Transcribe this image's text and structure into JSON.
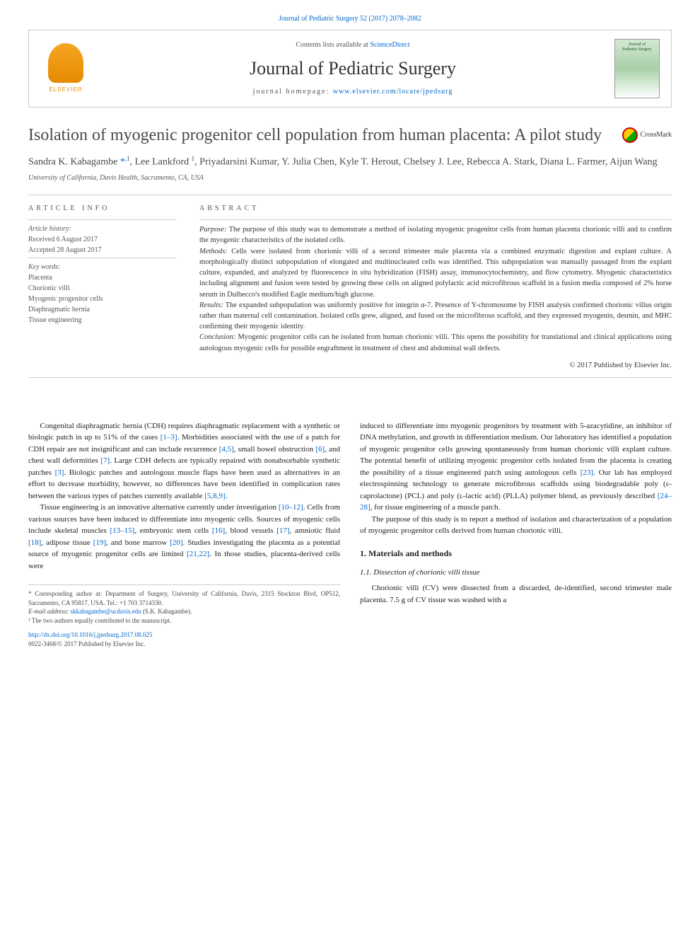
{
  "top_citation": "Journal of Pediatric Surgery 52 (2017) 2078–2082",
  "header": {
    "contents_prefix": "Contents lists available at ",
    "contents_link": "ScienceDirect",
    "journal_name": "Journal of Pediatric Surgery",
    "homepage_label": "journal homepage: ",
    "homepage_url": "www.elsevier.com/locate/jpedsurg",
    "publisher_name": "ELSEVIER",
    "cover_line1": "Journal of",
    "cover_line2": "Pediatric Surgery"
  },
  "article": {
    "title": "Isolation of myogenic progenitor cell population from human placenta: A pilot study",
    "crossmark": "CrossMark",
    "authors_html": "Sandra K. Kabagambe <a>*</a><sup>,1</sup>, Lee Lankford <sup>1</sup>, Priyadarsini Kumar, Y. Julia Chen, Kyle T. Herout, Chelsey J. Lee, Rebecca A. Stark, Diana L. Farmer, Aijun Wang",
    "affiliation": "University of California, Davis Health, Sacramento, CA, USA"
  },
  "info": {
    "heading": "article info",
    "history_label": "Article history:",
    "received": "Received 6 August 2017",
    "accepted": "Accepted 28 August 2017",
    "keywords_label": "Key words:",
    "keywords": [
      "Placenta",
      "Chorionic villi",
      "Myogenic progenitor cells",
      "Diaphragmatic hernia",
      "Tissue engineering"
    ]
  },
  "abstract": {
    "heading": "abstract",
    "purpose_label": "Purpose:",
    "purpose": " The purpose of this study was to demonstrate a method of isolating myogenic progenitor cells from human placenta chorionic villi and to confirm the myogenic characteristics of the isolated cells.",
    "methods_label": "Methods:",
    "methods": " Cells were isolated from chorionic villi of a second trimester male placenta via a combined enzymatic digestion and explant culture. A morphologically distinct subpopulation of elongated and multinucleated cells was identified. This subpopulation was manually passaged from the explant culture, expanded, and analyzed by fluorescence in situ hybridization (FISH) assay, immunocytochemistry, and flow cytometry. Myogenic characteristics including alignment and fusion were tested by growing these cells on aligned polylactic acid microfibrous scaffold in a fusion media composed of 2% horse serum in Dulbecco's modified Eagle medium/high glucose.",
    "results_label": "Results:",
    "results": " The expanded subpopulation was uniformly positive for integrin α-7. Presence of Y-chromosome by FISH analysis confirmed chorionic villus origin rather than maternal cell contamination. Isolated cells grew, aligned, and fused on the microfibrous scaffold, and they expressed myogenin, desmin, and MHC confirming their myogenic identity.",
    "conclusion_label": "Conclusion:",
    "conclusion": " Myogenic progenitor cells can be isolated from human chorionic villi. This opens the possibility for translational and clinical applications using autologous myogenic cells for possible engraftment in treatment of chest and abdominal wall defects.",
    "copyright": "© 2017 Published by Elsevier Inc."
  },
  "body": {
    "p1_a": "Congenital diaphragmatic hernia (CDH) requires diaphragmatic replacement with a synthetic or biologic patch in up to 51% of the cases ",
    "p1_r1": "[1–3]",
    "p1_b": ". Morbidities associated with the use of a patch for CDH repair are not insignificant and can include recurrence ",
    "p1_r2": "[4,5]",
    "p1_c": ", small bowel obstruction ",
    "p1_r3": "[6]",
    "p1_d": ", and chest wall deformities ",
    "p1_r4": "[7]",
    "p1_e": ". Large CDH defects are typically repaired with nonabsorbable synthetic patches ",
    "p1_r5": "[3]",
    "p1_f": ". Biologic patches and autologous muscle flaps have been used as alternatives in an effort to decrease morbidity, however, no differences have been identified in complication rates between the various types of patches currently available ",
    "p1_r6": "[5,8,9]",
    "p1_g": ".",
    "p2_a": "Tissue engineering is an innovative alternative currently under investigation ",
    "p2_r1": "[10–12]",
    "p2_b": ". Cells from various sources have been induced to differentiate into myogenic cells. Sources of myogenic cells include skeletal muscles ",
    "p2_r2": "[13–15]",
    "p2_c": ", embryonic stem cells ",
    "p2_r3": "[16]",
    "p2_d": ", blood vessels ",
    "p2_r4": "[17]",
    "p2_e": ", amniotic fluid ",
    "p2_r5": "[18]",
    "p2_f": ", adipose tissue ",
    "p2_r6": "[19]",
    "p2_g": ", and bone marrow ",
    "p2_r7": "[20]",
    "p2_h": ". Studies investigating the placenta as a potential source of myogenic progenitor cells are limited ",
    "p2_r8": "[21,22]",
    "p2_i": ". In those studies, placenta-derived cells were ",
    "p3_a": "induced to differentiate into myogenic progenitors by treatment with 5-azacytidine, an inhibitor of DNA methylation, and growth in differentiation medium. Our laboratory has identified a population of myogenic progenitor cells growing spontaneously from human chorionic villi explant culture. The potential benefit of utilizing myogenic progenitor cells isolated from the placenta is creating the possibility of a tissue engineered patch using autologous cells ",
    "p3_r1": "[23]",
    "p3_b": ". Our lab has employed electrospinning technology to generate microfibrous scaffolds using biodegradable poly (ε-caprolactone) (PCL) and poly (ʟ-lactic acid) (PLLA) polymer blend, as previously described ",
    "p3_r2": "[24–28]",
    "p3_c": ", for tissue engineering of a muscle patch.",
    "p4": "The purpose of this study is to report a method of isolation and characterization of a population of myogenic progenitor cells derived from human chorionic villi.",
    "sec1": "1. Materials and methods",
    "sec11": "1.1. Dissection of chorionic villi tissue",
    "p5": "Chorionic villi (CV) were dissected from a discarded, de-identified, second trimester male placenta. 7.5 g of CV tissue was washed with a"
  },
  "footnotes": {
    "corr": "* Corresponding author at: Department of Surgery, University of California, Davis, 2315 Stockton Blvd, OP512, Sacramento, CA 95817, USA. Tel.: +1 703 3714330.",
    "email_label": "E-mail address: ",
    "email": "skkabagambe@ucdavis.edu",
    "email_suffix": " (S.K. Kabagambe).",
    "equal": "¹ The two authors equally contributed to the manuscript.",
    "doi": "http://dx.doi.org/10.1016/j.jpedsurg.2017.08.025",
    "issn_line": "0022-3468/© 2017 Published by Elsevier Inc."
  },
  "colors": {
    "link": "#0066cc",
    "text": "#333333",
    "muted": "#555555",
    "rule": "#cccccc",
    "elsevier": "#e68a00"
  }
}
